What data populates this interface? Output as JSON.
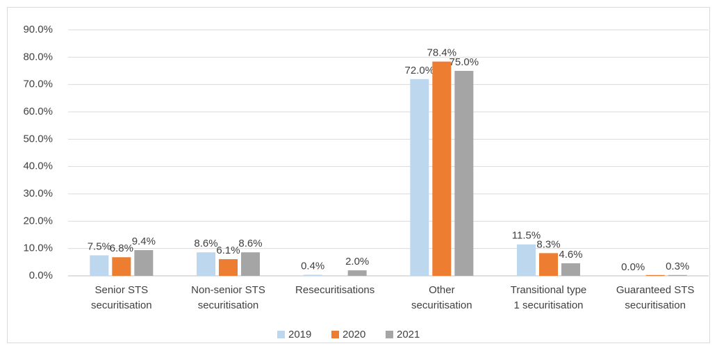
{
  "chart_data": {
    "type": "bar",
    "categories": [
      "Senior STS\nsecuritisation",
      "Non-senior STS\nsecuritisation",
      "Resecuritisations",
      "Other\nsecuritisation",
      "Transitional type\n1 securitisation",
      "Guaranteed STS\nsecuritisation"
    ],
    "series": [
      {
        "name": "2019",
        "color": "#bdd7ee",
        "values": [
          7.5,
          8.6,
          0.4,
          72.0,
          11.5,
          0.0
        ],
        "value_labels": [
          "7.5%",
          "8.6%",
          "0.4%",
          "72.0%",
          "11.5%",
          "0.0%"
        ]
      },
      {
        "name": "2020",
        "color": "#ed7d31",
        "values": [
          6.8,
          6.1,
          null,
          78.4,
          8.3,
          0.3
        ],
        "value_labels": [
          "6.8%",
          "6.1%",
          null,
          "78.4%",
          "8.3%",
          null
        ]
      },
      {
        "name": "2021",
        "color": "#a5a5a5",
        "values": [
          9.4,
          8.6,
          2.0,
          75.0,
          4.6,
          0.3
        ],
        "value_labels": [
          "9.4%",
          "8.6%",
          "2.0%",
          "75.0%",
          "4.6%",
          "0.3%"
        ]
      }
    ],
    "ylim": [
      0,
      90
    ],
    "yticks": [
      {
        "value": 0,
        "label": "0.0%"
      },
      {
        "value": 10,
        "label": "10.0%"
      },
      {
        "value": 20,
        "label": "20.0%"
      },
      {
        "value": 30,
        "label": "30.0%"
      },
      {
        "value": 40,
        "label": "40.0%"
      },
      {
        "value": 50,
        "label": "50.0%"
      },
      {
        "value": 60,
        "label": "60.0%"
      },
      {
        "value": 70,
        "label": "70.0%"
      },
      {
        "value": 80,
        "label": "80.0%"
      },
      {
        "value": 90,
        "label": "90.0%"
      }
    ],
    "grid": true,
    "legend": "bottom"
  }
}
